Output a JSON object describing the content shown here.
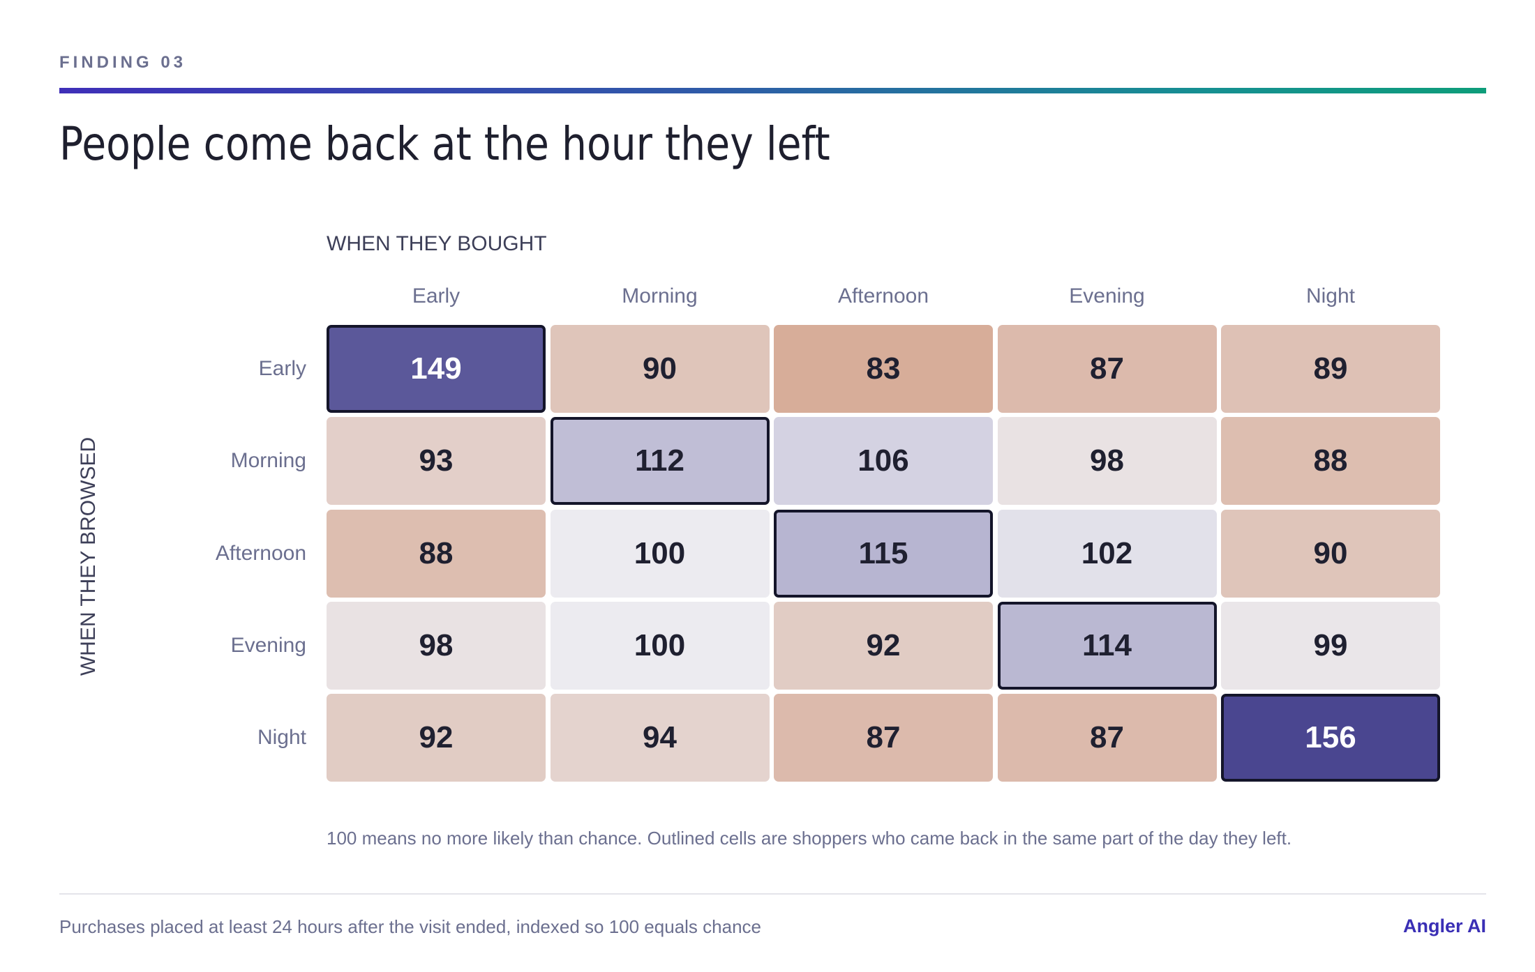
{
  "header": {
    "kicker": "FINDING 03",
    "title": "People come back at the hour they left"
  },
  "chart_data": {
    "type": "heatmap",
    "xlabel": "WHEN THEY BOUGHT",
    "ylabel": "WHEN THEY BROWSED",
    "x_categories": [
      "Early",
      "Morning",
      "Afternoon",
      "Evening",
      "Night"
    ],
    "y_categories": [
      "Early",
      "Morning",
      "Afternoon",
      "Evening",
      "Night"
    ],
    "values": [
      [
        149,
        90,
        83,
        87,
        89
      ],
      [
        93,
        112,
        106,
        98,
        88
      ],
      [
        88,
        100,
        115,
        102,
        90
      ],
      [
        98,
        100,
        92,
        114,
        99
      ],
      [
        92,
        94,
        87,
        87,
        156
      ]
    ],
    "highlight": "diagonal",
    "midpoint": 100,
    "colors": {
      "high": "#4a4690",
      "neutral": "#ecebf0",
      "low": "#d7ad99",
      "outline": "#14152a"
    },
    "note": "100 means no more likely than chance. Outlined cells are shoppers who came back in the same part of the day they left."
  },
  "footer": {
    "source": "Purchases placed at least 24 hours after the visit ended, indexed so 100 equals chance",
    "brand": "Angler AI"
  }
}
